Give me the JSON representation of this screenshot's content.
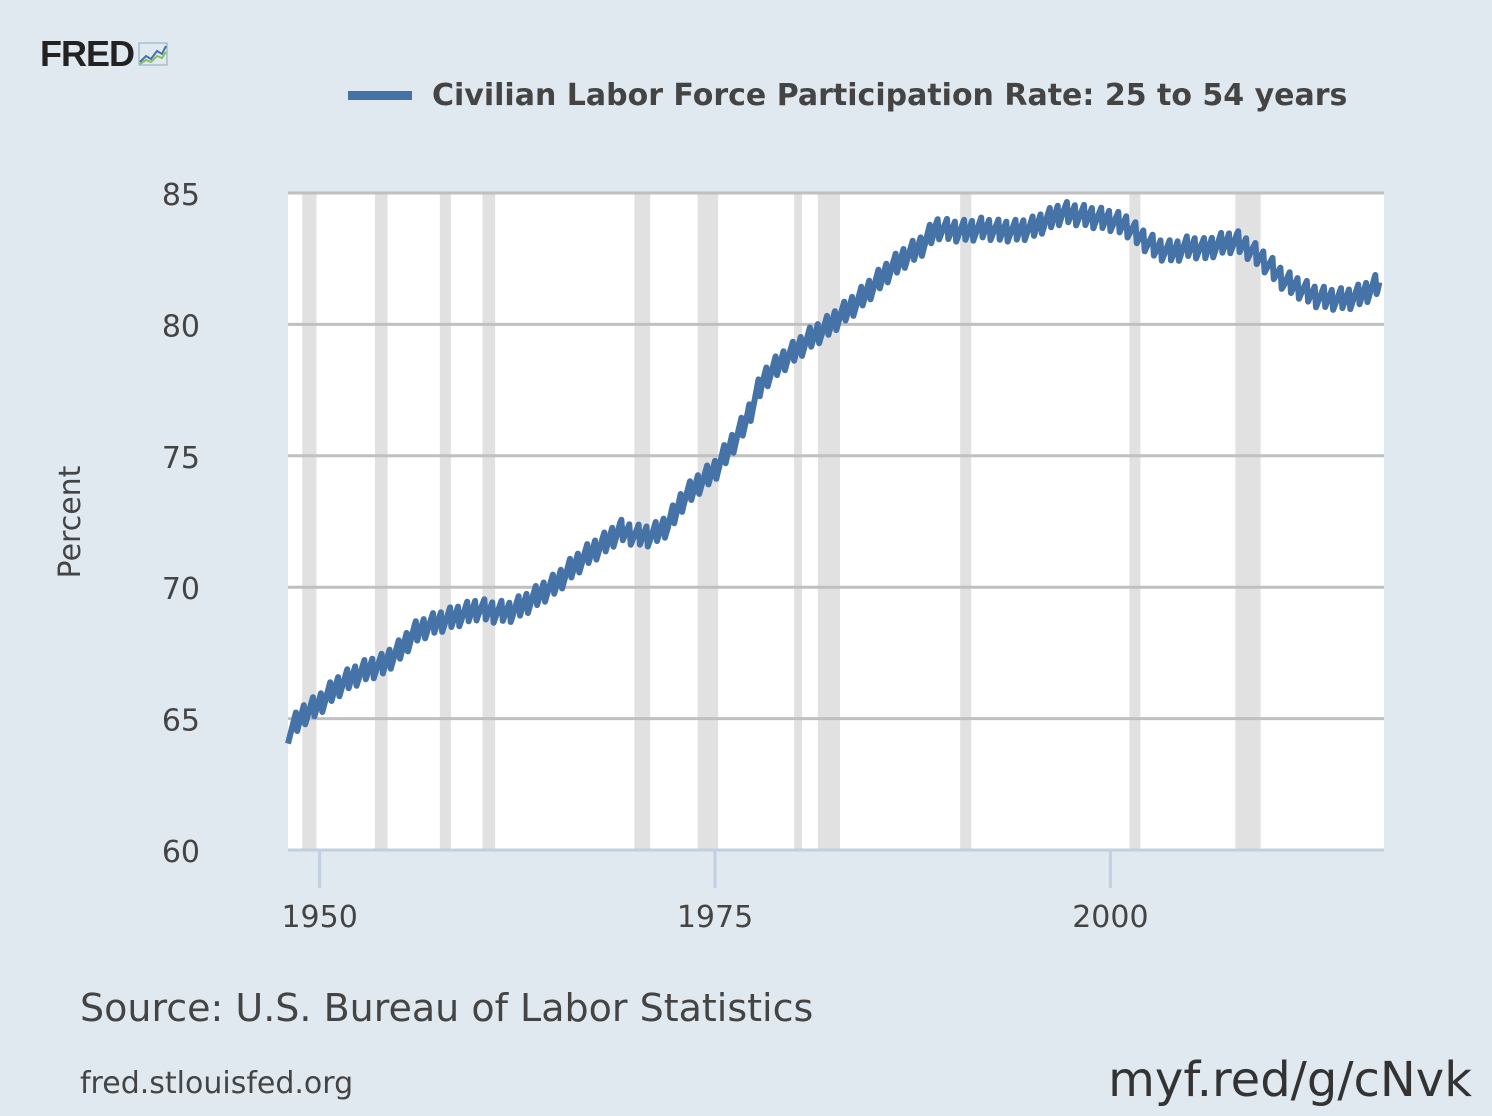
{
  "logo": {
    "text": "FRED",
    "icon": "chart-line-icon"
  },
  "source_text": "Source: U.S. Bureau of Labor Statistics",
  "site_text": "fred.stlouisfed.org",
  "short_link": "myf.red/g/cNvk",
  "colors": {
    "background": "#e1e9f0",
    "series": "#4572a7",
    "recession": "#e1e1e1",
    "grid": "#c0c0c0",
    "axis": "#c0d0e0"
  },
  "chart_data": {
    "type": "line",
    "title": "",
    "xlabel": "",
    "ylabel": "Percent",
    "ylim": [
      60,
      85
    ],
    "xlim": [
      1948.0,
      2017.3
    ],
    "grid": true,
    "legend": "top-center",
    "yticks": [
      "60",
      "65",
      "70",
      "75",
      "80",
      "85"
    ],
    "xticks": [
      "1950",
      "1975",
      "2000"
    ],
    "recessions": [
      [
        1948.9,
        1949.8
      ],
      [
        1953.5,
        1954.3
      ],
      [
        1957.6,
        1958.3
      ],
      [
        1960.3,
        1961.1
      ],
      [
        1969.9,
        1970.9
      ],
      [
        1973.9,
        1975.2
      ],
      [
        1980.0,
        1980.5
      ],
      [
        1981.5,
        1982.9
      ],
      [
        1990.5,
        1991.2
      ],
      [
        2001.2,
        2001.9
      ],
      [
        2007.9,
        2009.5
      ]
    ],
    "series": [
      {
        "name": "Civilian Labor Force Participation Rate: 25 to 54 years",
        "x": [
          1948,
          1949,
          1950,
          1951,
          1952,
          1953,
          1954,
          1955,
          1956,
          1957,
          1958,
          1959,
          1960,
          1961,
          1962,
          1963,
          1964,
          1965,
          1966,
          1967,
          1968,
          1969,
          1970,
          1971,
          1972,
          1973,
          1974,
          1975,
          1976,
          1977,
          1978,
          1979,
          1980,
          1981,
          1982,
          1983,
          1984,
          1985,
          1986,
          1987,
          1988,
          1989,
          1990,
          1991,
          1992,
          1993,
          1994,
          1995,
          1996,
          1997,
          1998,
          1999,
          2000,
          2001,
          2002,
          2003,
          2004,
          2005,
          2006,
          2007,
          2008,
          2009,
          2010,
          2011,
          2012,
          2013,
          2014,
          2015,
          2016,
          2017
        ],
        "y": [
          64.5,
          65.2,
          65.6,
          66.2,
          66.6,
          66.9,
          67.1,
          67.6,
          68.3,
          68.6,
          68.8,
          69.0,
          69.2,
          69.1,
          69.1,
          69.4,
          69.8,
          70.2,
          70.8,
          71.3,
          71.7,
          72.2,
          72.0,
          72.0,
          72.4,
          73.4,
          74.0,
          74.5,
          75.4,
          76.4,
          77.9,
          78.5,
          79.0,
          79.5,
          79.9,
          80.4,
          80.9,
          81.5,
          82.1,
          82.6,
          83.0,
          83.7,
          83.6,
          83.6,
          83.7,
          83.6,
          83.6,
          83.7,
          84.0,
          84.3,
          84.2,
          84.1,
          84.0,
          83.8,
          83.3,
          82.9,
          82.8,
          83.0,
          82.9,
          83.1,
          83.2,
          82.8,
          82.3,
          81.7,
          81.4,
          81.1,
          81.0,
          81.0,
          81.2,
          81.6
        ]
      }
    ]
  }
}
